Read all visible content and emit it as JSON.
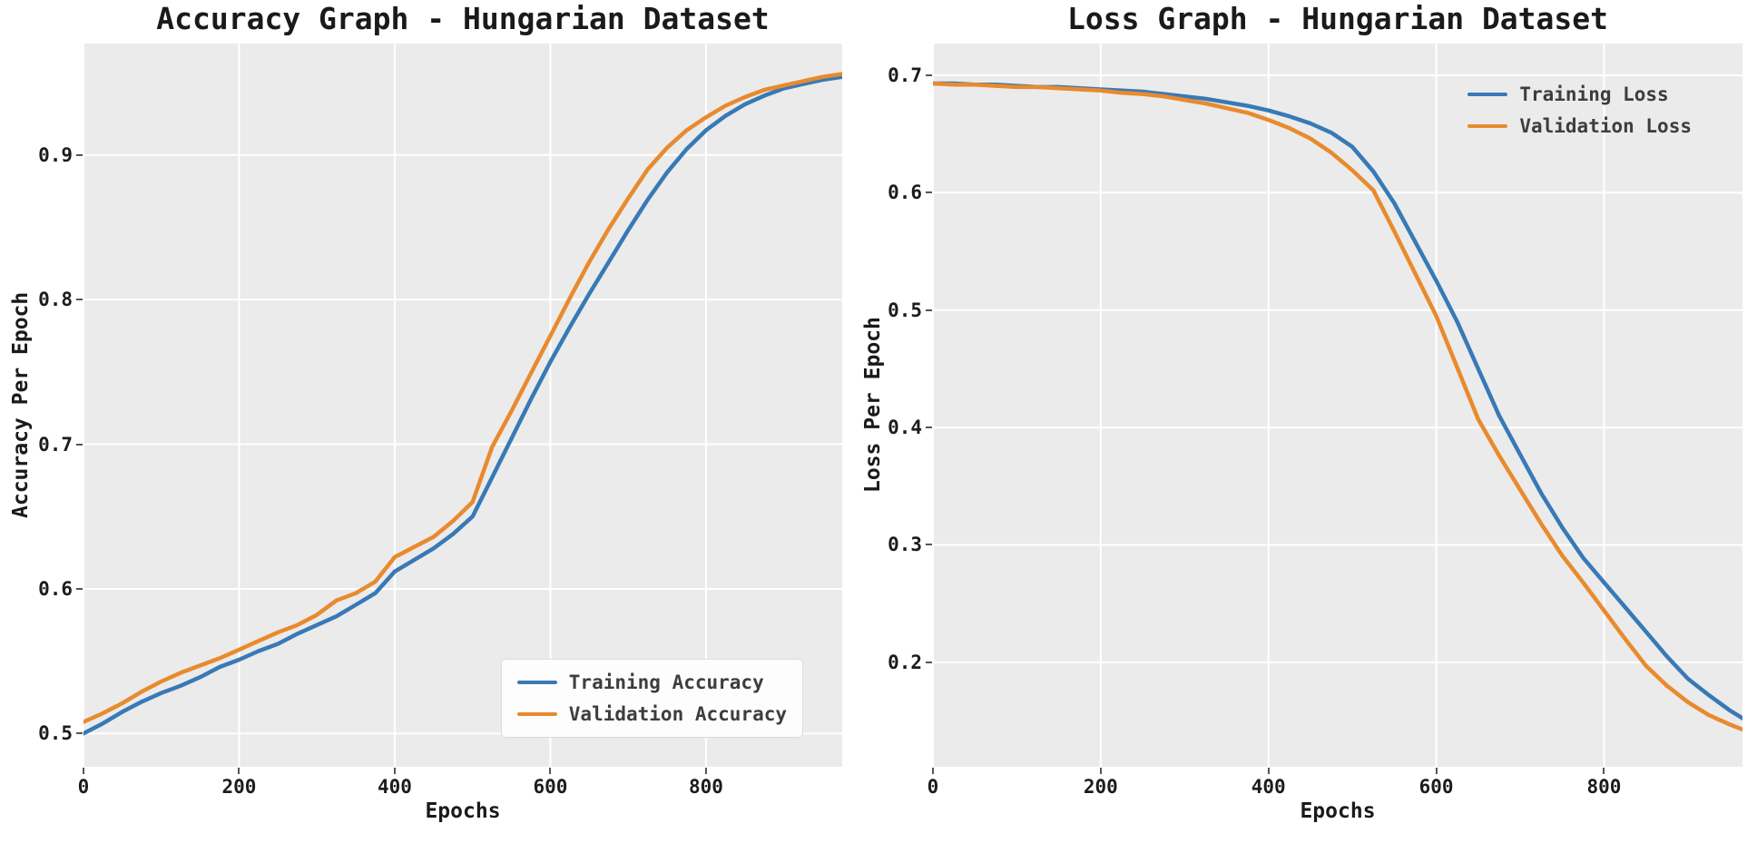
{
  "figure": {
    "background": "#ffffff",
    "plot_background": "#ebebeb",
    "grid_color": "#ffffff"
  },
  "chart_data": [
    {
      "type": "line",
      "title": "Accuracy Graph - Hungarian Dataset",
      "xlabel": "Epochs",
      "ylabel": "Accuracy Per Epoch",
      "xlim": [
        0,
        975
      ],
      "ylim": [
        0.477,
        0.977
      ],
      "xticks": [
        0,
        200,
        400,
        600,
        800
      ],
      "xtick_labels": [
        "0",
        "200",
        "400",
        "600",
        "800"
      ],
      "yticks": [
        0.5,
        0.6,
        0.7,
        0.8,
        0.9
      ],
      "ytick_labels": [
        "0.5",
        "0.6",
        "0.7",
        "0.8",
        "0.9"
      ],
      "grid": true,
      "legend_position": "lower right",
      "legend_frame": true,
      "x": [
        0,
        25,
        50,
        75,
        100,
        125,
        150,
        175,
        200,
        225,
        250,
        275,
        300,
        325,
        350,
        375,
        400,
        425,
        450,
        475,
        500,
        525,
        550,
        575,
        600,
        625,
        650,
        675,
        700,
        725,
        750,
        775,
        800,
        825,
        850,
        875,
        900,
        925,
        950,
        975
      ],
      "series": [
        {
          "name": "Training Accuracy",
          "color": "#3879b6",
          "values": [
            0.5,
            0.507,
            0.515,
            0.522,
            0.528,
            0.533,
            0.539,
            0.546,
            0.551,
            0.557,
            0.562,
            0.569,
            0.575,
            0.581,
            0.589,
            0.597,
            0.612,
            0.62,
            0.628,
            0.638,
            0.65,
            0.677,
            0.704,
            0.731,
            0.757,
            0.781,
            0.804,
            0.826,
            0.848,
            0.869,
            0.888,
            0.904,
            0.917,
            0.927,
            0.935,
            0.941,
            0.946,
            0.949,
            0.952,
            0.954
          ]
        },
        {
          "name": "Validation Accuracy",
          "color": "#e88a2e",
          "values": [
            0.508,
            0.514,
            0.521,
            0.529,
            0.536,
            0.542,
            0.547,
            0.552,
            0.558,
            0.564,
            0.57,
            0.575,
            0.582,
            0.592,
            0.597,
            0.605,
            0.622,
            0.629,
            0.636,
            0.647,
            0.66,
            0.698,
            0.723,
            0.749,
            0.775,
            0.801,
            0.826,
            0.849,
            0.87,
            0.89,
            0.905,
            0.917,
            0.926,
            0.934,
            0.94,
            0.945,
            0.948,
            0.951,
            0.954,
            0.956
          ]
        }
      ]
    },
    {
      "type": "line",
      "title": "Loss Graph - Hungarian Dataset",
      "xlabel": "Epochs",
      "ylabel": "Loss Per Epoch",
      "xlim": [
        0,
        965
      ],
      "ylim": [
        0.111,
        0.727
      ],
      "xticks": [
        0,
        200,
        400,
        600,
        800
      ],
      "xtick_labels": [
        "0",
        "200",
        "400",
        "600",
        "800"
      ],
      "yticks": [
        0.2,
        0.3,
        0.4,
        0.5,
        0.6,
        0.7
      ],
      "ytick_labels": [
        "0.2",
        "0.3",
        "0.4",
        "0.5",
        "0.6",
        "0.7"
      ],
      "grid": true,
      "legend_position": "upper right",
      "legend_frame": false,
      "x": [
        0,
        25,
        50,
        75,
        100,
        125,
        150,
        175,
        200,
        225,
        250,
        275,
        300,
        325,
        350,
        375,
        400,
        425,
        450,
        475,
        500,
        525,
        550,
        575,
        600,
        625,
        650,
        675,
        700,
        725,
        750,
        775,
        800,
        825,
        850,
        875,
        900,
        925,
        950,
        975
      ],
      "series": [
        {
          "name": "Training Loss",
          "color": "#3879b6",
          "values": [
            0.693,
            0.693,
            0.692,
            0.692,
            0.691,
            0.69,
            0.69,
            0.689,
            0.688,
            0.687,
            0.686,
            0.684,
            0.682,
            0.68,
            0.677,
            0.674,
            0.67,
            0.665,
            0.659,
            0.651,
            0.639,
            0.618,
            0.591,
            0.558,
            0.525,
            0.49,
            0.45,
            0.41,
            0.377,
            0.344,
            0.315,
            0.289,
            0.268,
            0.247,
            0.226,
            0.205,
            0.186,
            0.172,
            0.159,
            0.148
          ]
        },
        {
          "name": "Validation Loss",
          "color": "#e88a2e",
          "values": [
            0.693,
            0.692,
            0.692,
            0.691,
            0.69,
            0.69,
            0.689,
            0.688,
            0.687,
            0.685,
            0.684,
            0.682,
            0.679,
            0.676,
            0.672,
            0.668,
            0.662,
            0.655,
            0.646,
            0.634,
            0.619,
            0.602,
            0.567,
            0.531,
            0.495,
            0.451,
            0.407,
            0.376,
            0.347,
            0.318,
            0.291,
            0.268,
            0.244,
            0.22,
            0.197,
            0.18,
            0.166,
            0.155,
            0.147,
            0.14
          ]
        }
      ]
    }
  ]
}
